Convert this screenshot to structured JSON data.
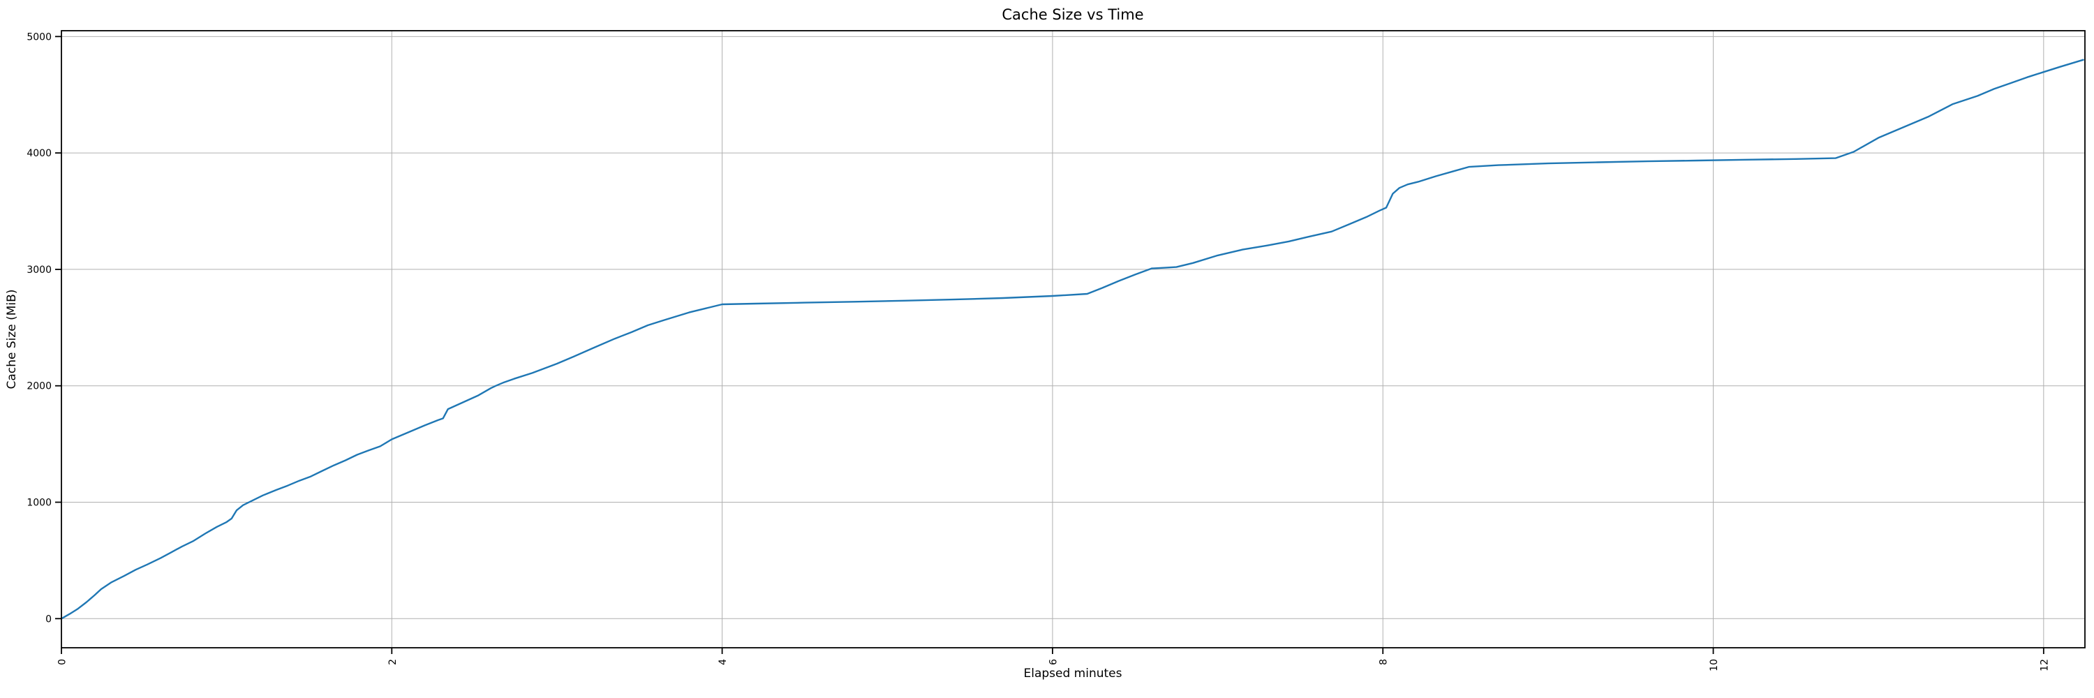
{
  "figure": {
    "background": "#ffffff"
  },
  "chart_data": {
    "type": "line",
    "title": "Cache Size vs Time",
    "xlabel": "Elapsed minutes",
    "ylabel": "Cache Size (MiB)",
    "xlim": [
      0,
      12.25
    ],
    "ylim": [
      -250,
      5050
    ],
    "xticks": [
      0,
      2,
      4,
      6,
      8,
      10,
      12
    ],
    "yticks": [
      0,
      1000,
      2000,
      3000,
      4000,
      5000
    ],
    "x_tick_rotation": 90,
    "grid": true,
    "legend": false,
    "line_color": "#1f77b4",
    "grid_color": "#b0b0b0",
    "spine_color": "#000000",
    "text_color": "#000000",
    "series": [
      {
        "name": "cache_size",
        "x": [
          0,
          0.05,
          0.1,
          0.15,
          0.2,
          0.24,
          0.3,
          0.38,
          0.45,
          0.52,
          0.6,
          0.66,
          0.73,
          0.8,
          0.87,
          0.94,
          1.0,
          1.03,
          1.06,
          1.1,
          1.15,
          1.22,
          1.3,
          1.37,
          1.44,
          1.51,
          1.58,
          1.65,
          1.72,
          1.79,
          1.86,
          1.93,
          2.0,
          2.1,
          2.2,
          2.28,
          2.31,
          2.34,
          2.38,
          2.45,
          2.52,
          2.6,
          2.63,
          2.68,
          2.74,
          2.85,
          3.0,
          3.1,
          3.22,
          3.35,
          3.45,
          3.55,
          3.65,
          3.8,
          3.9,
          4.0,
          4.2,
          4.5,
          4.8,
          5.1,
          5.4,
          5.7,
          6.0,
          6.21,
          6.3,
          6.4,
          6.5,
          6.6,
          6.68,
          6.75,
          6.85,
          7.0,
          7.15,
          7.3,
          7.43,
          7.55,
          7.69,
          7.8,
          7.9,
          7.98,
          8.02,
          8.06,
          8.1,
          8.15,
          8.22,
          8.32,
          8.42,
          8.52,
          8.7,
          9.0,
          9.3,
          9.6,
          9.9,
          10.2,
          10.5,
          10.74,
          10.85,
          11.0,
          11.15,
          11.3,
          11.45,
          11.6,
          11.7,
          11.8,
          11.9,
          12.0,
          12.1,
          12.24
        ],
        "y": [
          0,
          40,
          85,
          140,
          200,
          253,
          310,
          367,
          420,
          465,
          520,
          566,
          620,
          668,
          730,
          788,
          830,
          860,
          930,
          975,
          1010,
          1059,
          1105,
          1143,
          1185,
          1221,
          1270,
          1317,
          1360,
          1408,
          1445,
          1480,
          1540,
          1600,
          1660,
          1705,
          1720,
          1800,
          1825,
          1870,
          1915,
          1980,
          2000,
          2030,
          2060,
          2110,
          2190,
          2250,
          2325,
          2405,
          2460,
          2520,
          2565,
          2630,
          2665,
          2700,
          2706,
          2714,
          2722,
          2731,
          2741,
          2754,
          2772,
          2790,
          2840,
          2900,
          2955,
          3008,
          3014,
          3020,
          3055,
          3120,
          3170,
          3205,
          3240,
          3280,
          3325,
          3390,
          3450,
          3505,
          3530,
          3650,
          3700,
          3730,
          3755,
          3800,
          3840,
          3880,
          3895,
          3910,
          3920,
          3928,
          3935,
          3942,
          3948,
          3955,
          4010,
          4130,
          4220,
          4310,
          4420,
          4490,
          4550,
          4600,
          4650,
          4695,
          4740,
          4800
        ]
      }
    ]
  }
}
